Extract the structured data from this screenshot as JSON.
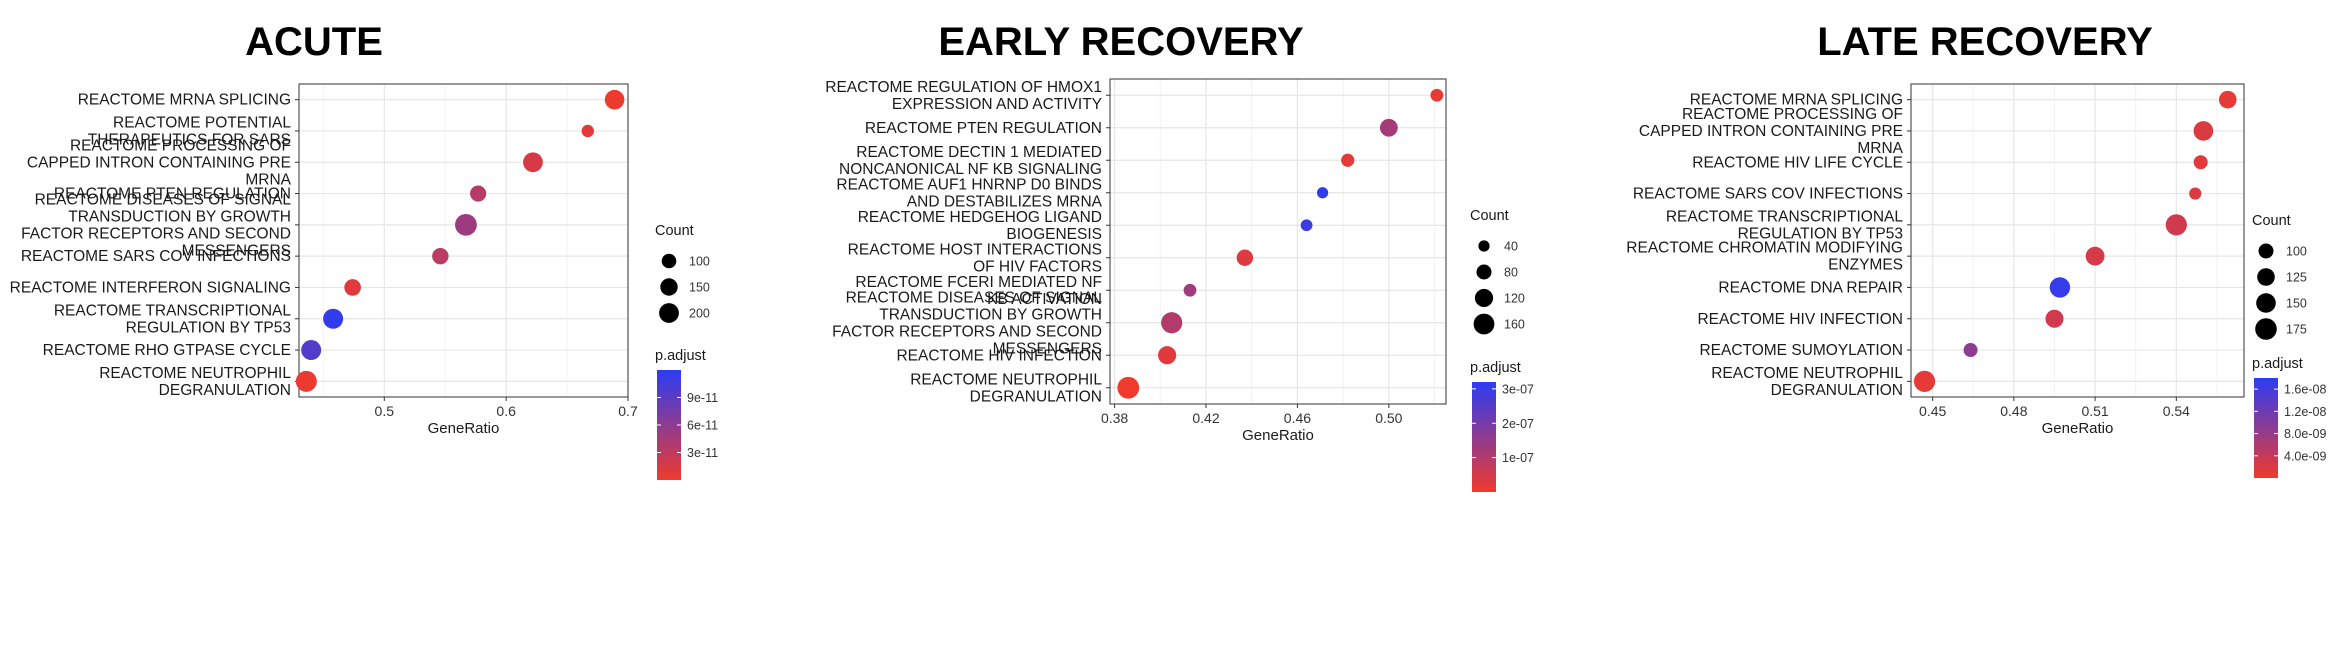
{
  "panels": [
    {
      "title": "ACUTE",
      "chart_data": {
        "type": "scatter",
        "title": "ACUTE",
        "xlabel": "GeneRatio",
        "ylabel": "",
        "xlim": [
          0.43,
          0.7
        ],
        "xticks": [
          0.5,
          0.6,
          0.7
        ],
        "xtick_labels": [
          "0.5",
          "0.6",
          "0.7"
        ],
        "grid": true,
        "categories": [
          [
            "REACTOME MRNA SPLICING"
          ],
          [
            "REACTOME POTENTIAL",
            "THERAPEUTICS FOR SARS"
          ],
          [
            "REACTOME PROCESSING OF",
            "CAPPED INTRON CONTAINING PRE",
            "MRNA"
          ],
          [
            "REACTOME PTEN REGULATION"
          ],
          [
            "REACTOME DISEASES OF SIGNAL",
            "TRANSDUCTION BY GROWTH",
            "FACTOR RECEPTORS AND SECOND",
            "MESSENGERS"
          ],
          [
            "REACTOME SARS COV INFECTIONS"
          ],
          [
            "REACTOME INTERFERON SIGNALING"
          ],
          [
            "REACTOME TRANSCRIPTIONAL",
            "REGULATION BY TP53"
          ],
          [
            "REACTOME RHO GTPASE CYCLE"
          ],
          [
            "REACTOME NEUTROPHIL",
            "DEGRANULATION"
          ]
        ],
        "points": [
          {
            "x": 0.689,
            "count": 195,
            "p_adjust": 2e-12
          },
          {
            "x": 0.667,
            "count": 65,
            "p_adjust": 8e-12
          },
          {
            "x": 0.622,
            "count": 200,
            "p_adjust": 1.5e-11
          },
          {
            "x": 0.577,
            "count": 125,
            "p_adjust": 3.5e-11
          },
          {
            "x": 0.567,
            "count": 245,
            "p_adjust": 5e-11
          },
          {
            "x": 0.546,
            "count": 130,
            "p_adjust": 3.3e-11
          },
          {
            "x": 0.474,
            "count": 135,
            "p_adjust": 1e-11
          },
          {
            "x": 0.458,
            "count": 205,
            "p_adjust": 1.15e-10
          },
          {
            "x": 0.44,
            "count": 205,
            "p_adjust": 9.5e-11
          },
          {
            "x": 0.436,
            "count": 225,
            "p_adjust": 3e-12
          }
        ],
        "size_legend": {
          "title": "Count",
          "values": [
            100,
            150,
            200
          ],
          "labels": [
            "100",
            "150",
            "200"
          ]
        },
        "color_legend": {
          "title": "p.adjust",
          "min": 0,
          "max": 1.2e-10,
          "ticks": [
            3e-11,
            6e-11,
            9e-11
          ],
          "labels": [
            "3e-11",
            "6e-11",
            "9e-11"
          ],
          "low_color": "#f03a2c",
          "high_color": "#2b3cf5"
        }
      }
    },
    {
      "title": "EARLY RECOVERY",
      "chart_data": {
        "type": "scatter",
        "title": "EARLY RECOVERY",
        "xlabel": "GeneRatio",
        "ylabel": "",
        "xlim": [
          0.378,
          0.525
        ],
        "xticks": [
          0.38,
          0.42,
          0.46,
          0.5
        ],
        "xtick_labels": [
          "0.38",
          "0.42",
          "0.46",
          "0.50"
        ],
        "grid": true,
        "categories": [
          [
            "REACTOME REGULATION OF HMOX1",
            "EXPRESSION AND ACTIVITY"
          ],
          [
            "REACTOME PTEN REGULATION"
          ],
          [
            "REACTOME DECTIN 1 MEDIATED",
            "NONCANONICAL NF KB SIGNALING"
          ],
          [
            "REACTOME AUF1 HNRNP D0 BINDS",
            "AND DESTABILIZES MRNA"
          ],
          [
            "REACTOME HEDGEHOG LIGAND",
            "BIOGENESIS"
          ],
          [
            "REACTOME HOST INTERACTIONS",
            "OF HIV FACTORS"
          ],
          [
            "REACTOME FCERI MEDIATED NF",
            "KB ACTIVATION"
          ],
          [
            "REACTOME DISEASES OF SIGNAL",
            "TRANSDUCTION BY GROWTH",
            "FACTOR RECEPTORS AND SECOND",
            "MESSENGERS"
          ],
          [
            "REACTOME HIV INFECTION"
          ],
          [
            "REACTOME NEUTROPHIL",
            "DEGRANULATION"
          ]
        ],
        "points": [
          {
            "x": 0.521,
            "count": 55,
            "p_adjust": 1.5e-08
          },
          {
            "x": 0.5,
            "count": 115,
            "p_adjust": 1.2e-07
          },
          {
            "x": 0.482,
            "count": 60,
            "p_adjust": 2e-08
          },
          {
            "x": 0.471,
            "count": 40,
            "p_adjust": 3.1e-07
          },
          {
            "x": 0.464,
            "count": 45,
            "p_adjust": 2.9e-07
          },
          {
            "x": 0.437,
            "count": 95,
            "p_adjust": 3e-08
          },
          {
            "x": 0.413,
            "count": 55,
            "p_adjust": 1.3e-07
          },
          {
            "x": 0.405,
            "count": 165,
            "p_adjust": 1e-07
          },
          {
            "x": 0.403,
            "count": 120,
            "p_adjust": 2.5e-08
          },
          {
            "x": 0.386,
            "count": 175,
            "p_adjust": 1e-09
          }
        ],
        "size_legend": {
          "title": "Count",
          "values": [
            40,
            80,
            120,
            160
          ],
          "labels": [
            "40",
            "80",
            "120",
            "160"
          ]
        },
        "color_legend": {
          "title": "p.adjust",
          "min": 0,
          "max": 3.2e-07,
          "ticks": [
            1e-07,
            2e-07,
            3e-07
          ],
          "labels": [
            "1e-07",
            "2e-07",
            "3e-07"
          ],
          "low_color": "#f03a2c",
          "high_color": "#2b3cf5"
        }
      }
    },
    {
      "title": "LATE RECOVERY",
      "chart_data": {
        "type": "scatter",
        "title": "LATE RECOVERY",
        "xlabel": "GeneRatio",
        "ylabel": "",
        "xlim": [
          0.442,
          0.565
        ],
        "xticks": [
          0.45,
          0.48,
          0.51,
          0.54
        ],
        "xtick_labels": [
          "0.45",
          "0.48",
          "0.51",
          "0.54"
        ],
        "grid": true,
        "categories": [
          [
            "REACTOME MRNA SPLICING"
          ],
          [
            "REACTOME PROCESSING OF",
            "CAPPED INTRON CONTAINING PRE",
            "MRNA"
          ],
          [
            "REACTOME HIV LIFE CYCLE"
          ],
          [
            "REACTOME SARS COV INFECTIONS"
          ],
          [
            "REACTOME TRANSCRIPTIONAL",
            "REGULATION BY TP53"
          ],
          [
            "REACTOME CHROMATIN MODIFYING",
            "ENZYMES"
          ],
          [
            "REACTOME DNA REPAIR"
          ],
          [
            "REACTOME HIV INFECTION"
          ],
          [
            "REACTOME SUMOYLATION"
          ],
          [
            "REACTOME NEUTROPHIL",
            "DEGRANULATION"
          ]
        ],
        "points": [
          {
            "x": 0.559,
            "count": 125,
            "p_adjust": 1e-09
          },
          {
            "x": 0.55,
            "count": 150,
            "p_adjust": 2e-09
          },
          {
            "x": 0.549,
            "count": 90,
            "p_adjust": 1.5e-09
          },
          {
            "x": 0.547,
            "count": 75,
            "p_adjust": 2e-09
          },
          {
            "x": 0.54,
            "count": 170,
            "p_adjust": 3e-09
          },
          {
            "x": 0.51,
            "count": 140,
            "p_adjust": 2.5e-09
          },
          {
            "x": 0.497,
            "count": 160,
            "p_adjust": 1.7e-08
          },
          {
            "x": 0.495,
            "count": 130,
            "p_adjust": 3e-09
          },
          {
            "x": 0.464,
            "count": 90,
            "p_adjust": 9e-09
          },
          {
            "x": 0.447,
            "count": 170,
            "p_adjust": 1e-09
          }
        ],
        "size_legend": {
          "title": "Count",
          "values": [
            100,
            125,
            150,
            175
          ],
          "labels": [
            "100",
            "125",
            "150",
            "175"
          ]
        },
        "color_legend": {
          "title": "p.adjust",
          "min": 0,
          "max": 1.8e-08,
          "ticks": [
            4e-09,
            8e-09,
            1.2e-08,
            1.6e-08
          ],
          "labels": [
            "4.0e-09",
            "8.0e-09",
            "1.2e-08",
            "1.6e-08"
          ],
          "low_color": "#f03a2c",
          "high_color": "#2b3cf5"
        }
      }
    }
  ]
}
